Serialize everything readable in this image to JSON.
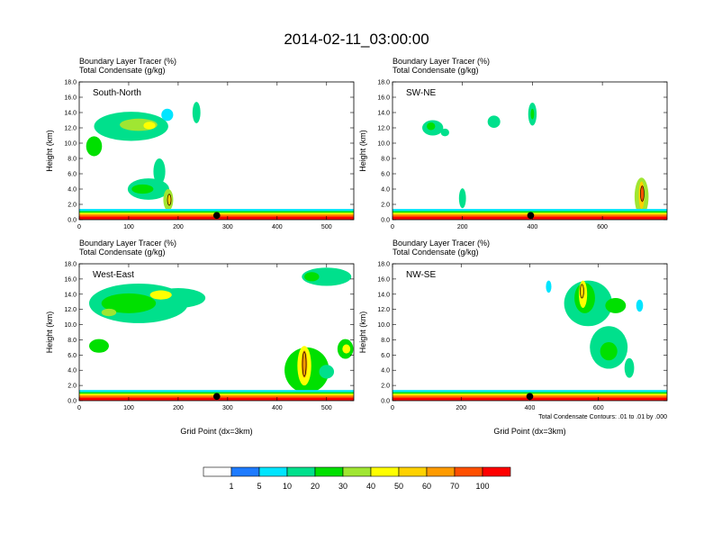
{
  "figure_title": "2014-02-11_03:00:00",
  "chart_data": [
    {
      "type": "heatmap",
      "panel_label": "South-North",
      "subtitle_line1": "Boundary Layer Tracer   (%)",
      "subtitle_line2": "Total Condensate   (g/kg)",
      "ylabel": "Height (km)",
      "xlabel": "",
      "xlim": [
        0,
        555
      ],
      "ylim": [
        0,
        18
      ],
      "xticks": [
        0,
        100,
        200,
        300,
        400,
        500
      ],
      "yticks": [
        "0.0",
        "2.0",
        "4.0",
        "6.0",
        "8.0",
        "10.0",
        "12.0",
        "14.0",
        "16.0",
        "18.0"
      ],
      "marker_x": 278,
      "surface_band_top_km": 1.4,
      "blobs": [
        {
          "x": 30,
          "y": 9.6,
          "rx": 16,
          "ry": 1.3,
          "v": 20
        },
        {
          "x": 105,
          "y": 12.2,
          "rx": 75,
          "ry": 1.9,
          "v": 10
        },
        {
          "x": 120,
          "y": 12.4,
          "rx": 38,
          "ry": 0.8,
          "v": 30
        },
        {
          "x": 142,
          "y": 12.3,
          "rx": 12,
          "ry": 0.5,
          "v": 40
        },
        {
          "x": 178,
          "y": 13.7,
          "rx": 12,
          "ry": 0.8,
          "v": 5
        },
        {
          "x": 237,
          "y": 14.0,
          "rx": 8,
          "ry": 1.4,
          "v": 10
        },
        {
          "x": 162,
          "y": 6.3,
          "rx": 12,
          "ry": 1.7,
          "v": 10
        },
        {
          "x": 140,
          "y": 4.0,
          "rx": 42,
          "ry": 1.4,
          "v": 10
        },
        {
          "x": 128,
          "y": 4.0,
          "rx": 22,
          "ry": 0.6,
          "v": 20
        },
        {
          "x": 180,
          "y": 2.6,
          "rx": 10,
          "ry": 1.4,
          "v": 30
        },
        {
          "x": 182,
          "y": 2.6,
          "rx": 5,
          "ry": 0.8,
          "v": 50
        }
      ]
    },
    {
      "type": "heatmap",
      "panel_label": "SW-NE",
      "subtitle_line1": "Boundary Layer Tracer   (%)",
      "subtitle_line2": "Total Condensate   (g/kg)",
      "ylabel": "Height (km)",
      "xlabel": "",
      "xlim": [
        0,
        785
      ],
      "ylim": [
        0,
        18
      ],
      "xticks": [
        0,
        200,
        400,
        600
      ],
      "yticks": [
        "0.0",
        "2.0",
        "4.0",
        "6.0",
        "8.0",
        "10.0",
        "12.0",
        "14.0",
        "16.0",
        "18.0"
      ],
      "marker_x": 395,
      "surface_band_top_km": 1.4,
      "blobs": [
        {
          "x": 115,
          "y": 12.0,
          "rx": 30,
          "ry": 1.0,
          "v": 10
        },
        {
          "x": 110,
          "y": 12.2,
          "rx": 12,
          "ry": 0.5,
          "v": 20
        },
        {
          "x": 150,
          "y": 11.4,
          "rx": 12,
          "ry": 0.5,
          "v": 10
        },
        {
          "x": 290,
          "y": 12.8,
          "rx": 18,
          "ry": 0.8,
          "v": 10
        },
        {
          "x": 400,
          "y": 13.8,
          "rx": 12,
          "ry": 1.5,
          "v": 10
        },
        {
          "x": 400,
          "y": 13.8,
          "rx": 5,
          "ry": 0.7,
          "v": 20
        },
        {
          "x": 200,
          "y": 2.8,
          "rx": 10,
          "ry": 1.3,
          "v": 10
        },
        {
          "x": 712,
          "y": 3.0,
          "rx": 20,
          "ry": 2.5,
          "v": 30
        },
        {
          "x": 712,
          "y": 3.2,
          "rx": 8,
          "ry": 1.8,
          "v": 50
        },
        {
          "x": 714,
          "y": 3.4,
          "rx": 4,
          "ry": 1.1,
          "v": 70
        }
      ]
    },
    {
      "type": "heatmap",
      "panel_label": "West-East",
      "subtitle_line1": "Boundary Layer Tracer   (%)",
      "subtitle_line2": "Total Condensate   (g/kg)",
      "ylabel": "Height (km)",
      "xlabel": "Grid Point (dx=3km)",
      "xlim": [
        0,
        555
      ],
      "ylim": [
        0,
        18
      ],
      "xticks": [
        0,
        100,
        200,
        300,
        400,
        500
      ],
      "yticks": [
        "0.0",
        "2.0",
        "4.0",
        "6.0",
        "8.0",
        "10.0",
        "12.0",
        "14.0",
        "16.0",
        "18.0"
      ],
      "marker_x": 278,
      "surface_band_top_km": 1.4,
      "blobs": [
        {
          "x": 120,
          "y": 12.8,
          "rx": 100,
          "ry": 2.6,
          "v": 10
        },
        {
          "x": 200,
          "y": 13.5,
          "rx": 55,
          "ry": 1.3,
          "v": 10
        },
        {
          "x": 100,
          "y": 12.8,
          "rx": 55,
          "ry": 1.3,
          "v": 20
        },
        {
          "x": 165,
          "y": 13.9,
          "rx": 22,
          "ry": 0.6,
          "v": 40
        },
        {
          "x": 60,
          "y": 11.6,
          "rx": 15,
          "ry": 0.5,
          "v": 30
        },
        {
          "x": 40,
          "y": 7.2,
          "rx": 20,
          "ry": 0.9,
          "v": 20
        },
        {
          "x": 500,
          "y": 16.3,
          "rx": 50,
          "ry": 1.2,
          "v": 10
        },
        {
          "x": 470,
          "y": 16.3,
          "rx": 15,
          "ry": 0.6,
          "v": 20
        },
        {
          "x": 460,
          "y": 4.0,
          "rx": 45,
          "ry": 3.0,
          "v": 20
        },
        {
          "x": 455,
          "y": 4.6,
          "rx": 14,
          "ry": 2.6,
          "v": 40
        },
        {
          "x": 455,
          "y": 4.8,
          "rx": 6,
          "ry": 1.8,
          "v": 60
        },
        {
          "x": 538,
          "y": 6.8,
          "rx": 16,
          "ry": 1.3,
          "v": 20
        },
        {
          "x": 540,
          "y": 6.8,
          "rx": 8,
          "ry": 0.6,
          "v": 40
        },
        {
          "x": 500,
          "y": 3.8,
          "rx": 15,
          "ry": 0.9,
          "v": 10
        }
      ]
    },
    {
      "type": "heatmap",
      "panel_label": "NW-SE",
      "subtitle_line1": "Boundary Layer Tracer   (%)",
      "subtitle_line2": "Total Condensate   (g/kg)",
      "ylabel": "Height (km)",
      "xlabel": "Grid Point (dx=3km)",
      "note": "Total Condensate Contours: .01 to .01 by .000",
      "xlim": [
        0,
        800
      ],
      "ylim": [
        0,
        18
      ],
      "xticks": [
        0,
        200,
        400,
        600
      ],
      "yticks": [
        "0.0",
        "2.0",
        "4.0",
        "6.0",
        "8.0",
        "10.0",
        "12.0",
        "14.0",
        "16.0",
        "18.0"
      ],
      "marker_x": 400,
      "surface_band_top_km": 1.4,
      "blobs": [
        {
          "x": 570,
          "y": 12.8,
          "rx": 70,
          "ry": 3.0,
          "v": 10
        },
        {
          "x": 560,
          "y": 13.5,
          "rx": 30,
          "ry": 2.0,
          "v": 20
        },
        {
          "x": 555,
          "y": 14.0,
          "rx": 12,
          "ry": 1.8,
          "v": 40
        },
        {
          "x": 552,
          "y": 14.4,
          "rx": 5,
          "ry": 1.0,
          "v": 50
        },
        {
          "x": 650,
          "y": 12.5,
          "rx": 30,
          "ry": 1.0,
          "v": 20
        },
        {
          "x": 630,
          "y": 7.0,
          "rx": 55,
          "ry": 2.8,
          "v": 10
        },
        {
          "x": 630,
          "y": 6.5,
          "rx": 25,
          "ry": 1.2,
          "v": 20
        },
        {
          "x": 690,
          "y": 4.3,
          "rx": 14,
          "ry": 1.3,
          "v": 10
        },
        {
          "x": 720,
          "y": 12.5,
          "rx": 10,
          "ry": 0.8,
          "v": 5
        },
        {
          "x": 455,
          "y": 15.0,
          "rx": 8,
          "ry": 0.8,
          "v": 5
        }
      ]
    }
  ],
  "colorbar": {
    "labels": [
      "1",
      "5",
      "10",
      "20",
      "30",
      "40",
      "50",
      "60",
      "70",
      "100"
    ],
    "colors": [
      "#ffffff",
      "#1e7bff",
      "#00e5ff",
      "#00e08c",
      "#00e000",
      "#a0e632",
      "#ffff00",
      "#ffd200",
      "#ff9b00",
      "#ff5000",
      "#ff0000"
    ],
    "scale_values": [
      0,
      1,
      5,
      10,
      20,
      30,
      40,
      50,
      60,
      70,
      100
    ]
  }
}
